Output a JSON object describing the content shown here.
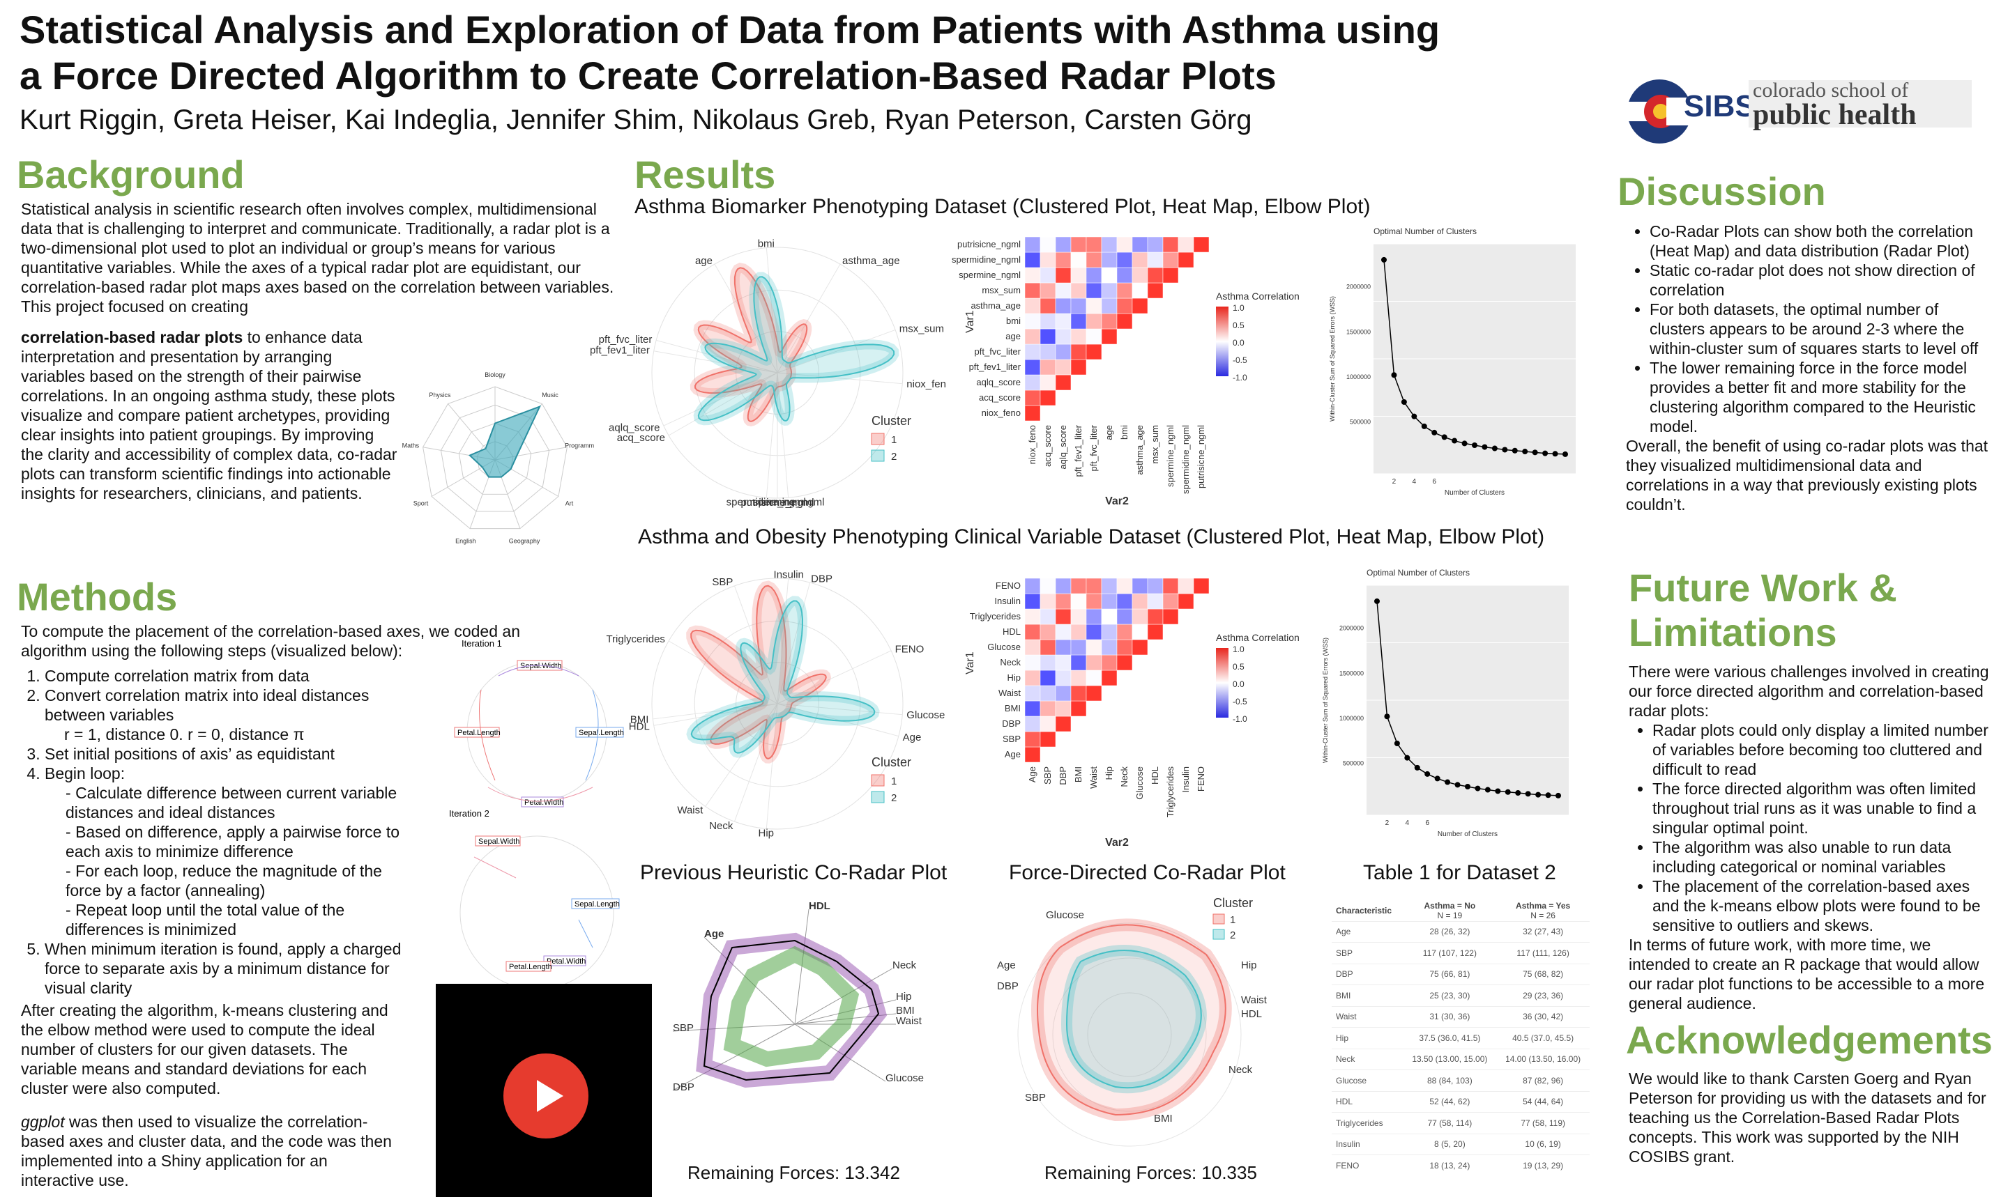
{
  "header": {
    "title_line1": "Statistical Analysis and Exploration of Data from Patients with Asthma using",
    "title_line2": "a Force Directed Algorithm to Create Correlation-Based Radar Plots",
    "authors": "Kurt Riggin, Greta Heiser, Kai Indeglia, Jennifer Shim, Nikolaus Greb, Ryan Peterson, Carsten Görg",
    "logo_cosibs": "SIBS",
    "logo_school_line1": "colorado school of",
    "logo_school_line2": "public health"
  },
  "background": {
    "heading": "Background",
    "text_before_bold": "Statistical analysis in scientific research often involves complex, multidimensional data that is challenging to interpret and communicate. Traditionally, a radar plot is a two-dimensional plot used to plot an individual or group’s means for various quantitative variables. While the axes of a typical radar plot are equidistant, our correlation-based radar plot maps axes based on the correlation between variables. This project focused on creating",
    "bold": "correlation-based radar plots",
    "text_after_bold": "to enhance data interpretation and presentation by arranging variables based on the strength of their pairwise correlations. In an ongoing asthma study, these plots visualize and compare patient archetypes, providing clear insights into patient groupings. By improving the clarity and accessibility of complex data, co-radar plots can transform scientific findings into actionable insights for researchers, clinicians, and patients.",
    "radar_axes": [
      "Biology",
      "Music",
      "Programm",
      "Art",
      "Geography",
      "English",
      "Sport",
      "Maths",
      "Physics"
    ],
    "radar_values": [
      20,
      38,
      12,
      10,
      10,
      10,
      8,
      14,
      8
    ]
  },
  "methods": {
    "heading": "Methods",
    "intro": "To compute the placement of the correlation-based axes, we coded an algorithm using the following steps (visualized below):",
    "steps": [
      "Compute correlation matrix from data",
      "Convert correlation matrix into ideal distances between variables",
      "Set initial positions of axis’ as equidistant",
      "Begin loop:",
      "When minimum iteration is found, apply a charged force to separate axis by a minimum distance for visual clarity"
    ],
    "step2_detail": "r = 1, distance 0. r = 0, distance π",
    "loop_items": [
      "Calculate difference between current variable distances and ideal distances",
      "Based on difference, apply a pairwise force to each axis to minimize difference",
      "For each loop, reduce the magnitude of the force by a factor (annealing)",
      "Repeat loop until the total value of the differences is minimized"
    ],
    "para2": "After creating the algorithm, k-means clustering and the elbow method were used to compute the ideal number of clusters for our given datasets. The variable means and standard deviations  for each cluster were also computed.",
    "para3_italic": "ggplot",
    "para3_rest": " was then used to visualize the correlation-based axes and cluster data, and the code was then implemented into a Shiny application for an interactive use.",
    "iter1": "Iteration 1",
    "iter2": "Iteration 2",
    "iris_labels": [
      "Sepal.Width",
      "Petal.Length",
      "Sepal.Length",
      "Petal.Width"
    ]
  },
  "results": {
    "heading": "Results",
    "sub1": "Asthma Biomarker Phenotyping Dataset (Clustered Plot, Heat Map, Elbow Plot)",
    "sub2": "Asthma and Obesity Phenotyping Clinical Variable Dataset (Clustered Plot, Heat Map, Elbow Plot)",
    "radar1_labels": [
      "bmi",
      "asthma_age",
      "age",
      "msx_sum",
      "pft_fev1_liter",
      "pft_fvc_liter",
      "niox_fen",
      "acq_score",
      "aqlq_score",
      "spermine_ngml",
      "putrisicne_ngml",
      "spermidine_ngml"
    ],
    "radar2_labels": [
      "Insulin",
      "DBP",
      "SBP",
      "FENO",
      "Triglycerides",
      "Glucose",
      "Age",
      "HDL",
      "BMI",
      "Waist",
      "Neck",
      "Hip"
    ],
    "cluster_title": "Cluster",
    "cluster_labels": [
      "1",
      "2"
    ],
    "cluster_colors": [
      "#f0726a",
      "#45c0c6"
    ],
    "heat1": {
      "vars": [
        "niox_feno",
        "acq_score",
        "aqlq_score",
        "pft_fev1_liter",
        "pft_fvc_liter",
        "age",
        "bmi",
        "asthma_age",
        "msx_sum",
        "spermine_ngml",
        "spermidine_ngml",
        "putrisicne_ngml"
      ],
      "legend_title": "Asthma Correlation",
      "legend_ticks": [
        "1.0",
        "0.5",
        "0.0",
        "-0.5",
        "-1.0"
      ],
      "ylab": "Var1",
      "xlab": "Var2"
    },
    "heat2": {
      "vars": [
        "Age",
        "SBP",
        "DBP",
        "BMI",
        "Waist",
        "Hip",
        "Neck",
        "Glucose",
        "HDL",
        "Triglycerides",
        "Insulin",
        "FENO"
      ],
      "legend_title": "Asthma Correlation",
      "legend_ticks": [
        "1.0",
        "0.5",
        "0.0",
        "-0.5",
        "-1.0"
      ],
      "ylab": "Var1",
      "xlab": "Var2"
    },
    "elbow1": {
      "title": "Optimal Number of Clusters",
      "ylabel": "Within-Cluster Sum of Squared Errors (WSS)",
      "xlabel": "Number of Clusters",
      "yticks": [
        "2000000",
        "1500000",
        "1000000",
        "500000"
      ],
      "xticks": [
        "2",
        "4",
        "6"
      ]
    },
    "elbow2": {
      "title": "Optimal Number of Clusters",
      "ylabel": "Within-Cluster Sum of Squared Errors (WSS)",
      "xlabel": "Number of Clusters",
      "yticks": [
        "2000000",
        "1500000",
        "1000000",
        "500000"
      ],
      "xticks": [
        "2",
        "4",
        "6"
      ]
    },
    "heuristic_title": "Previous Heuristic Co-Radar Plot",
    "force_title": "Force-Directed Co-Radar Plot",
    "table_title": "Table 1 for Dataset 2",
    "heuristic_labels": [
      "HDL",
      "Age",
      "Neck",
      "Hip",
      "BMI",
      "Waist",
      "SBP",
      "DBP",
      "Glucose"
    ],
    "force_labels": [
      "Glucose",
      "Age",
      "DBP",
      "Hip",
      "Waist",
      "HDL",
      "Neck",
      "SBP",
      "BMI"
    ],
    "remaining1": "Remaining Forces: 13.342",
    "remaining2": "Remaining Forces: 10.335",
    "table": {
      "headers": [
        "Characteristic",
        "Asthma = No",
        "Asthma = Yes"
      ],
      "n": [
        "N = 19",
        "N = 26"
      ],
      "rows": [
        [
          "Age",
          "28 (26, 32)",
          "32 (27, 43)"
        ],
        [
          "SBP",
          "117 (107, 122)",
          "117 (111, 126)"
        ],
        [
          "DBP",
          "75 (66, 81)",
          "75 (68, 82)"
        ],
        [
          "BMI",
          "25 (23, 30)",
          "29 (23, 36)"
        ],
        [
          "Waist",
          "31 (30, 36)",
          "36 (30, 42)"
        ],
        [
          "Hip",
          "37.5 (36.0, 41.5)",
          "40.5 (37.0, 45.5)"
        ],
        [
          "Neck",
          "13.50 (13.00, 15.00)",
          "14.00 (13.50, 16.00)"
        ],
        [
          "Glucose",
          "88 (84, 103)",
          "87 (82, 96)"
        ],
        [
          "HDL",
          "52 (44, 62)",
          "54 (44, 64)"
        ],
        [
          "Triglycerides",
          "77 (58, 114)",
          "77 (58, 119)"
        ],
        [
          "Insulin",
          "8 (5, 20)",
          "10 (6, 19)"
        ],
        [
          "FENO",
          "18 (13, 24)",
          "19 (13, 29)"
        ]
      ]
    }
  },
  "discussion": {
    "heading": "Discussion",
    "bullets": [
      "Co-Radar Plots can show both the correlation (Heat Map) and data distribution (Radar Plot)",
      "Static co-radar plot does not show direction of correlation",
      "For both datasets, the optimal number of clusters appears to be around 2-3 where the within-cluster sum of squares starts to level off",
      "The lower remaining force in the force model provides a better fit and more stability for the clustering algorithm compared to the Heuristic model."
    ],
    "overall": "Overall, the benefit of using co-radar plots was that they visualized multidimensional data and correlations in a way that previously existing plots couldn’t."
  },
  "future": {
    "heading_line1": "Future Work &",
    "heading_line2": "Limitations",
    "intro": "There were various challenges involved in creating our force directed algorithm and correlation-based radar plots:",
    "bullets": [
      "Radar plots could only display a limited number of variables before becoming too cluttered and difficult to read",
      "The force directed algorithm was often limited throughout trial runs as it was unable to find a singular optimal point.",
      "The algorithm was also unable to run data including categorical or nominal variables",
      "The placement of the correlation-based axes and the k-means elbow plots were found to be sensitive to outliers and skews."
    ],
    "outro": "In terms of future work, with more time, we intended to create an R package that would allow our radar plot functions  to be accessible to a more general audience."
  },
  "ack": {
    "heading": "Acknowledgements",
    "text": "We would like to thank Carsten Goerg and Ryan Peterson for providing us with the datasets and for teaching us the Correlation-Based Radar Plots concepts. This work was supported by the NIH COSIBS grant."
  },
  "colors": {
    "heading_green": "#7aa84e",
    "cluster1": "#f0726a",
    "cluster2": "#45c0c6",
    "video_red": "#e63b2e"
  }
}
